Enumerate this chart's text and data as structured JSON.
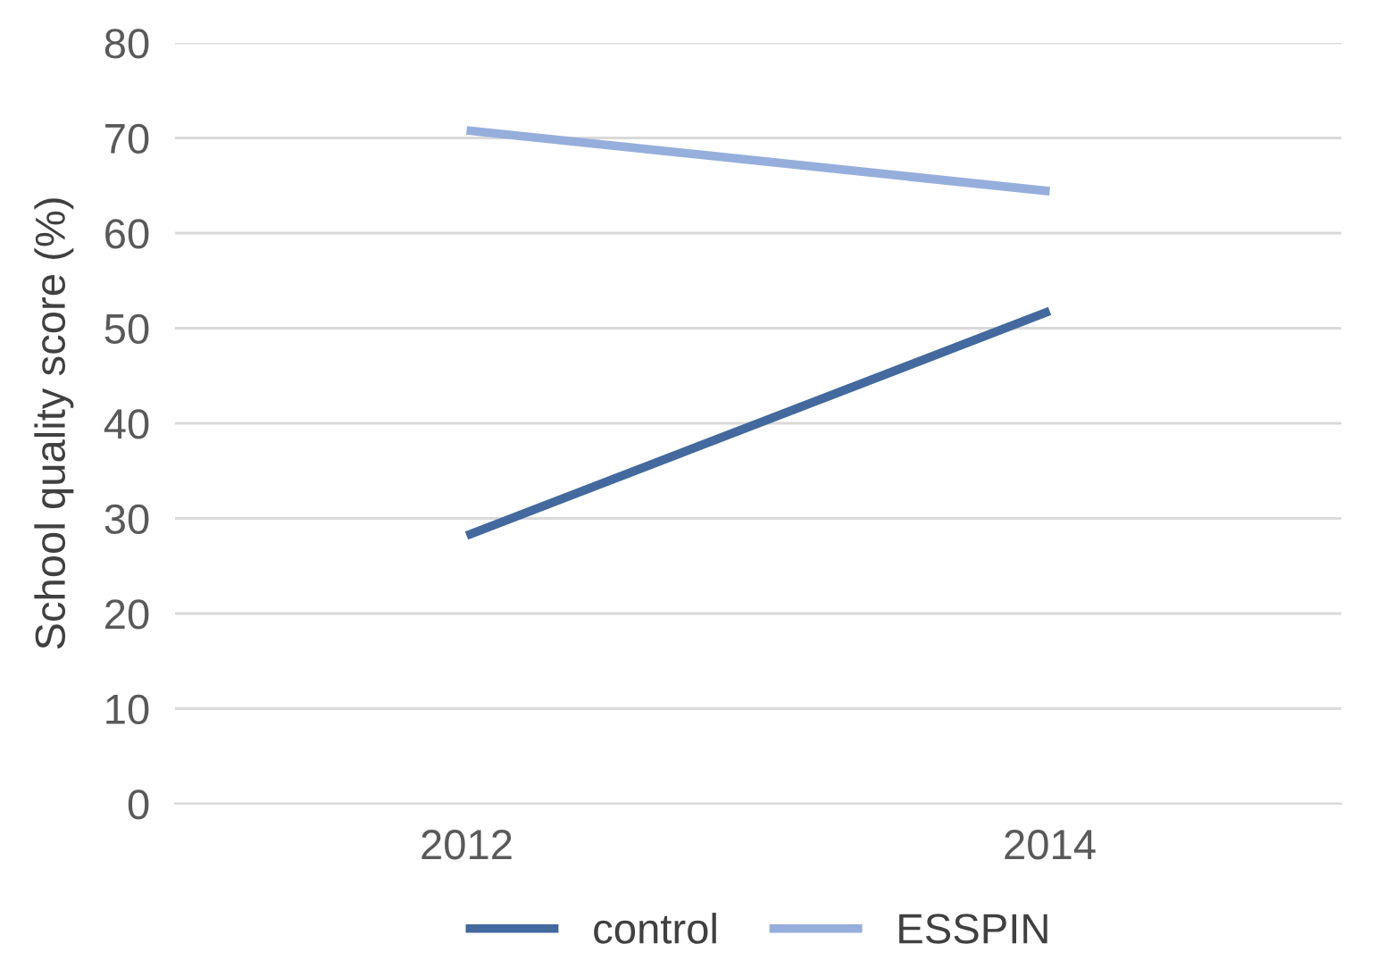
{
  "chart_data": {
    "type": "line",
    "ylabel": "School quality score (%)",
    "categories": [
      "2012",
      "2014"
    ],
    "series": [
      {
        "name": "control",
        "color": "#43699e",
        "values": [
          28.2,
          51.8
        ]
      },
      {
        "name": "ESSPIN",
        "color": "#96aedb",
        "values": [
          70.8,
          64.4
        ]
      }
    ],
    "ylim": [
      0,
      80
    ],
    "yticks": [
      0,
      10,
      20,
      30,
      40,
      50,
      60,
      70,
      80
    ],
    "grid": "y",
    "legend": "bottom",
    "marker": "none",
    "line_style": "solid"
  }
}
